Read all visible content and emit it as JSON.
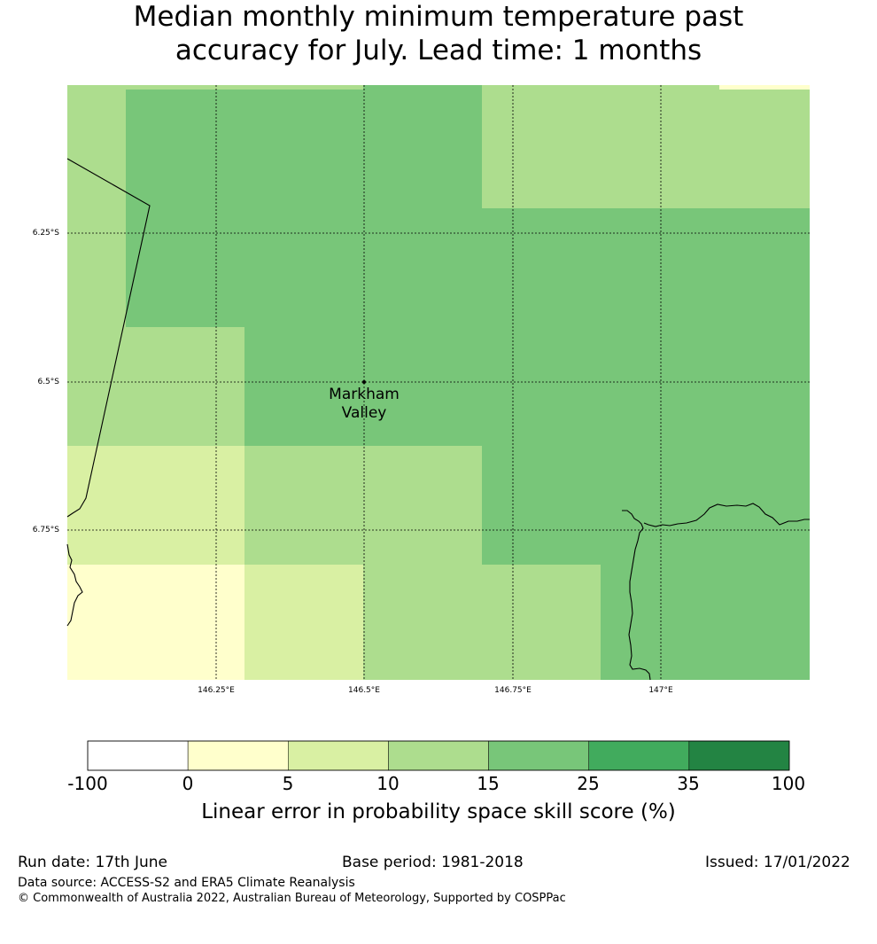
{
  "title": {
    "line1": "Median monthly minimum temperature past",
    "line2": "accuracy for July. Lead time: 1 months"
  },
  "map": {
    "lat_labels": [
      "6.25°S",
      "6.5°S",
      "6.75°S"
    ],
    "lon_labels": [
      "146.25°E",
      "146.5°E",
      "146.75°E",
      "147°E"
    ],
    "place": {
      "name_line1": "Markham",
      "name_line2": "Valley"
    },
    "grid": {
      "cols": 7,
      "rows": 6,
      "cells": [
        [
          3,
          3,
          3,
          4,
          3,
          3,
          1
        ],
        [
          3,
          4,
          4,
          4,
          3,
          3,
          3
        ],
        [
          3,
          4,
          4,
          4,
          4,
          4,
          4
        ],
        [
          3,
          3,
          4,
          4,
          4,
          4,
          4
        ],
        [
          2,
          2,
          3,
          3,
          4,
          4,
          4
        ],
        [
          1,
          1,
          2,
          3,
          3,
          4,
          4
        ]
      ]
    }
  },
  "colorbar": {
    "colors": [
      "#ffffff",
      "#ffffcc",
      "#d9f0a3",
      "#addd8e",
      "#78c679",
      "#41ab5d",
      "#238443"
    ],
    "ticks": [
      "-100",
      "0",
      "5",
      "10",
      "15",
      "25",
      "35",
      "100"
    ],
    "label": "Linear error in probability space skill score (%)"
  },
  "footer": {
    "run_date": "Run date: 17th June",
    "base_period": "Base period: 1981-2018",
    "issued": "Issued: 17/01/2022",
    "data_source": "Data source: ACCESS-S2 and ERA5 Climate Reanalysis",
    "copyright": "© Commonwealth of Australia 2022, Australian Bureau of Meteorology, Supported by COSPPac"
  }
}
